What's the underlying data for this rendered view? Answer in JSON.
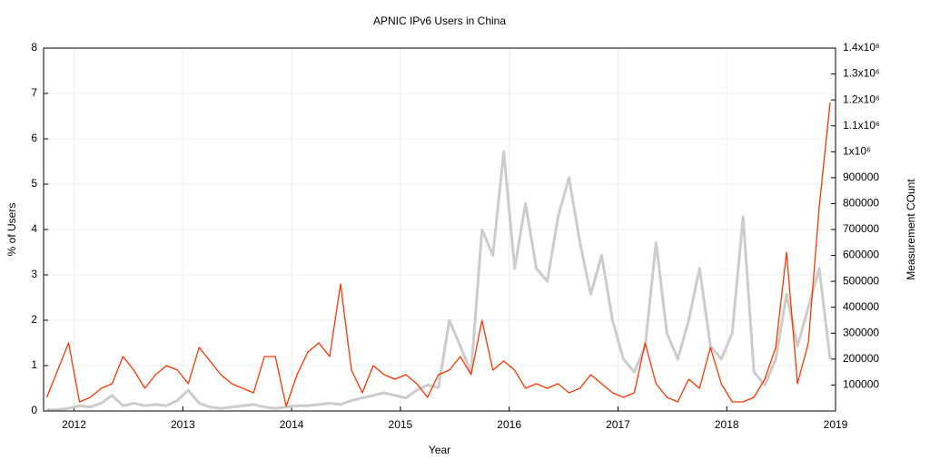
{
  "chart_data": {
    "type": "line",
    "title": "APNIC IPv6 Users in China",
    "x_label": "Year",
    "y_label": "% of Users",
    "y2_label": "Measurement COunt",
    "x": [
      2011.75,
      2011.85,
      2011.95,
      2012.05,
      2012.15,
      2012.25,
      2012.35,
      2012.45,
      2012.55,
      2012.65,
      2012.75,
      2012.85,
      2012.95,
      2013.05,
      2013.15,
      2013.25,
      2013.35,
      2013.45,
      2013.55,
      2013.65,
      2013.75,
      2013.85,
      2013.95,
      2014.05,
      2014.15,
      2014.25,
      2014.35,
      2014.45,
      2014.55,
      2014.65,
      2014.75,
      2014.85,
      2014.95,
      2015.05,
      2015.15,
      2015.25,
      2015.35,
      2015.45,
      2015.55,
      2015.65,
      2015.75,
      2015.85,
      2015.95,
      2016.05,
      2016.15,
      2016.25,
      2016.35,
      2016.45,
      2016.55,
      2016.65,
      2016.75,
      2016.85,
      2016.95,
      2017.05,
      2017.15,
      2017.25,
      2017.35,
      2017.45,
      2017.55,
      2017.65,
      2017.75,
      2017.85,
      2017.95,
      2018.05,
      2018.15,
      2018.25,
      2018.35,
      2018.45,
      2018.55,
      2018.65,
      2018.75,
      2018.85,
      2018.95
    ],
    "series": [
      {
        "color": "#cccccc",
        "axis": "y2",
        "values": [
          5000,
          5000,
          10000,
          20000,
          15000,
          30000,
          60000,
          20000,
          30000,
          20000,
          25000,
          20000,
          40000,
          80000,
          30000,
          15000,
          10000,
          15000,
          20000,
          25000,
          15000,
          10000,
          15000,
          20000,
          20000,
          25000,
          30000,
          25000,
          40000,
          50000,
          60000,
          70000,
          60000,
          50000,
          80000,
          100000,
          90000,
          350000,
          250000,
          150000,
          700000,
          600000,
          1000000,
          550000,
          800000,
          550000,
          500000,
          750000,
          900000,
          650000,
          450000,
          600000,
          350000,
          200000,
          150000,
          250000,
          650000,
          300000,
          200000,
          350000,
          550000,
          250000,
          200000,
          300000,
          750000,
          150000,
          100000,
          200000,
          450000,
          250000,
          400000,
          550000,
          200000
        ]
      },
      {
        "color": "#ff3300",
        "axis": "y",
        "values": [
          0.3,
          0.9,
          1.5,
          0.2,
          0.3,
          0.5,
          0.6,
          1.2,
          0.9,
          0.5,
          0.8,
          1.0,
          0.9,
          0.6,
          1.4,
          1.1,
          0.8,
          0.6,
          0.5,
          0.4,
          1.2,
          1.2,
          0.1,
          0.8,
          1.3,
          1.5,
          1.2,
          2.8,
          0.9,
          0.4,
          1.0,
          0.8,
          0.7,
          0.8,
          0.6,
          0.3,
          0.8,
          0.9,
          1.2,
          0.8,
          2.0,
          0.9,
          1.1,
          0.9,
          0.5,
          0.6,
          0.5,
          0.6,
          0.4,
          0.5,
          0.8,
          0.6,
          0.4,
          0.3,
          0.4,
          1.5,
          0.6,
          0.3,
          0.2,
          0.7,
          0.5,
          1.4,
          0.6,
          0.2,
          0.2,
          0.3,
          0.7,
          1.4,
          3.5,
          0.6,
          1.5,
          4.5,
          6.8
        ]
      }
    ],
    "xlim": [
      2011.72,
      2019
    ],
    "xticks": [
      2012,
      2013,
      2014,
      2015,
      2016,
      2017,
      2018,
      2019
    ],
    "ylim": [
      0,
      8
    ],
    "yticks": [
      0,
      1,
      2,
      3,
      4,
      5,
      6,
      7,
      8
    ],
    "y2lim": [
      0,
      1400000
    ],
    "y2ticks": [
      100000,
      200000,
      300000,
      400000,
      500000,
      600000,
      700000,
      800000,
      900000,
      {
        "value": 1000000,
        "label": "1x10⁶"
      },
      {
        "value": 1100000,
        "label": "1.1x10⁶"
      },
      {
        "value": 1200000,
        "label": "1.2x10⁶"
      },
      {
        "value": 1300000,
        "label": "1.3x10⁶"
      },
      {
        "value": 1400000,
        "label": "1.4x10⁶"
      }
    ],
    "grid": true
  }
}
